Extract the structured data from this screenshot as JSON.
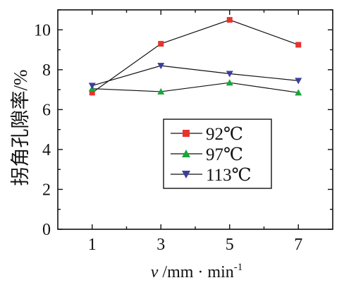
{
  "chart_data": {
    "type": "line",
    "x": [
      1,
      3,
      5,
      7
    ],
    "series": [
      {
        "name": "92℃",
        "values": [
          6.85,
          9.3,
          10.5,
          9.25
        ],
        "color": "#e8332d",
        "marker": "square"
      },
      {
        "name": "97℃",
        "values": [
          7.05,
          6.9,
          7.35,
          6.85
        ],
        "color": "#17a63a",
        "marker": "triangle-up"
      },
      {
        "name": "113℃",
        "values": [
          7.2,
          8.2,
          7.8,
          7.45
        ],
        "color": "#3b3f9c",
        "marker": "triangle-down"
      }
    ],
    "ylabel": "拐角孔隙率/%",
    "xlabel": {
      "var": "v",
      "unit": " /mm · min",
      "sup": "-1"
    },
    "xlim": [
      0,
      8
    ],
    "ylim": [
      0,
      11
    ],
    "xticks": [
      1,
      3,
      5,
      7
    ],
    "yticks": [
      0,
      2,
      4,
      6,
      8,
      10
    ],
    "grid": false,
    "legend": "inside-bottom-right",
    "line_color": "#111111"
  }
}
